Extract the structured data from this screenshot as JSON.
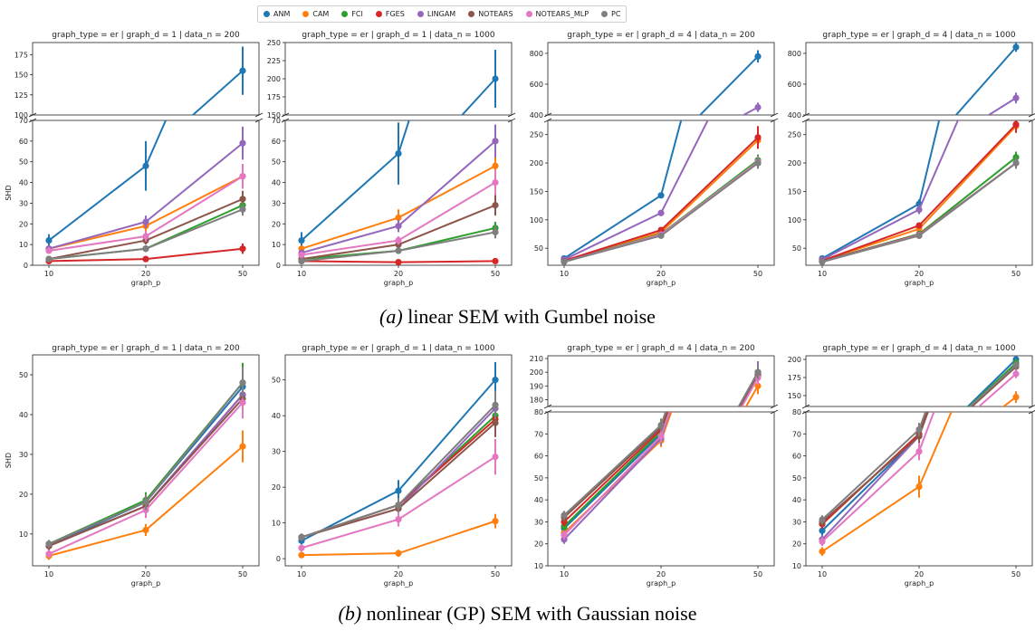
{
  "captions": {
    "a_label": "(a)",
    "a_text": " linear SEM with Gumbel noise",
    "b_label": "(b)",
    "b_text": " nonlinear (GP) SEM with Gaussian noise"
  },
  "legend": [
    {
      "name": "ANM",
      "color": "#1f77b4"
    },
    {
      "name": "CAM",
      "color": "#ff7f0e"
    },
    {
      "name": "FCI",
      "color": "#2ca02c"
    },
    {
      "name": "FGES",
      "color": "#d62728"
    },
    {
      "name": "LINGAM",
      "color": "#9467bd"
    },
    {
      "name": "NOTEARS",
      "color": "#8c564b"
    },
    {
      "name": "NOTEARS_MLP",
      "color": "#e377c2"
    },
    {
      "name": "PC",
      "color": "#7f7f7f"
    }
  ],
  "chart_data": [
    {
      "type": "line",
      "row": "a",
      "title": "graph_type = er | graph_d = 1 | data_n = 200",
      "xlabel": "graph_p",
      "ylabel": "SHD",
      "categories": [
        "10",
        "20",
        "50"
      ],
      "axes": [
        {
          "ylim": [
            100,
            190
          ],
          "ticks": [
            100,
            125,
            150,
            175
          ]
        },
        {
          "ylim": [
            0,
            70
          ],
          "ticks": [
            0,
            10,
            20,
            30,
            40,
            50,
            60,
            70
          ]
        }
      ],
      "series": [
        {
          "name": "ANM",
          "values": [
            12,
            48,
            155
          ],
          "err": [
            3,
            12,
            30
          ]
        },
        {
          "name": "CAM",
          "values": [
            8,
            19,
            43
          ],
          "err": [
            1.5,
            3,
            6
          ]
        },
        {
          "name": "FCI",
          "values": [
            3,
            8,
            29
          ],
          "err": [
            1,
            1.5,
            3
          ]
        },
        {
          "name": "FGES",
          "values": [
            2,
            3,
            8
          ],
          "err": [
            0.5,
            1,
            2.5
          ]
        },
        {
          "name": "LINGAM",
          "values": [
            8,
            21,
            59
          ],
          "err": [
            1.5,
            3,
            8
          ]
        },
        {
          "name": "NOTEARS",
          "values": [
            3,
            12,
            32
          ],
          "err": [
            1,
            2,
            4
          ]
        },
        {
          "name": "NOTEARS_MLP",
          "values": [
            7,
            14,
            43
          ],
          "err": [
            1.5,
            2.5,
            6
          ]
        },
        {
          "name": "PC",
          "values": [
            3,
            8,
            27
          ],
          "err": [
            1,
            1.5,
            3
          ]
        }
      ]
    },
    {
      "type": "line",
      "row": "a",
      "title": "graph_type = er | graph_d = 1 | data_n = 1000",
      "xlabel": "graph_p",
      "ylabel": "",
      "categories": [
        "10",
        "20",
        "50"
      ],
      "axes": [
        {
          "ylim": [
            150,
            250
          ],
          "ticks": [
            150,
            175,
            200,
            225,
            250
          ]
        },
        {
          "ylim": [
            0,
            70
          ],
          "ticks": [
            0,
            10,
            20,
            30,
            40,
            50,
            60,
            70
          ]
        }
      ],
      "series": [
        {
          "name": "ANM",
          "values": [
            12,
            54,
            200
          ],
          "err": [
            4,
            15,
            40
          ]
        },
        {
          "name": "CAM",
          "values": [
            8,
            23,
            48
          ],
          "err": [
            1.5,
            4,
            6
          ]
        },
        {
          "name": "FCI",
          "values": [
            3,
            7,
            18
          ],
          "err": [
            1,
            1.5,
            3
          ]
        },
        {
          "name": "FGES",
          "values": [
            2,
            1.5,
            2
          ],
          "err": [
            0.5,
            0.5,
            0.5
          ]
        },
        {
          "name": "LINGAM",
          "values": [
            6,
            19,
            60
          ],
          "err": [
            1.5,
            3,
            8
          ]
        },
        {
          "name": "NOTEARS",
          "values": [
            3,
            10,
            29
          ],
          "err": [
            1,
            2,
            5
          ]
        },
        {
          "name": "NOTEARS_MLP",
          "values": [
            5,
            12,
            40
          ],
          "err": [
            1.5,
            2,
            6
          ]
        },
        {
          "name": "PC",
          "values": [
            2,
            7,
            16
          ],
          "err": [
            1,
            1.5,
            3
          ]
        }
      ]
    },
    {
      "type": "line",
      "row": "a",
      "title": "graph_type = er | graph_d = 4 | data_n = 200",
      "xlabel": "graph_p",
      "ylabel": "",
      "categories": [
        "10",
        "20",
        "50"
      ],
      "axes": [
        {
          "ylim": [
            400,
            870
          ],
          "ticks": [
            400,
            600,
            800
          ]
        },
        {
          "ylim": [
            20,
            275
          ],
          "ticks": [
            50,
            100,
            150,
            200,
            250
          ]
        }
      ],
      "series": [
        {
          "name": "ANM",
          "values": [
            32,
            143,
            780
          ],
          "err": [
            2,
            3,
            40
          ]
        },
        {
          "name": "CAM",
          "values": [
            28,
            78,
            240
          ],
          "err": [
            2,
            3,
            10
          ]
        },
        {
          "name": "FCI",
          "values": [
            27,
            75,
            205
          ],
          "err": [
            2,
            3,
            10
          ]
        },
        {
          "name": "FGES",
          "values": [
            28,
            82,
            245
          ],
          "err": [
            2,
            3,
            20
          ]
        },
        {
          "name": "LINGAM",
          "values": [
            30,
            112,
            450
          ],
          "err": [
            2,
            3,
            30
          ]
        },
        {
          "name": "NOTEARS",
          "values": [
            27,
            73,
            200
          ],
          "err": [
            2,
            3,
            10
          ]
        },
        {
          "name": "NOTEARS_MLP",
          "values": [
            26,
            74,
            202
          ],
          "err": [
            2,
            3,
            10
          ]
        },
        {
          "name": "PC",
          "values": [
            26,
            72,
            200
          ],
          "err": [
            2,
            3,
            10
          ]
        }
      ]
    },
    {
      "type": "line",
      "row": "a",
      "title": "graph_type = er | graph_d = 4 | data_n = 1000",
      "xlabel": "graph_p",
      "ylabel": "",
      "categories": [
        "10",
        "20",
        "50"
      ],
      "axes": [
        {
          "ylim": [
            400,
            870
          ],
          "ticks": [
            400,
            600,
            800
          ]
        },
        {
          "ylim": [
            20,
            275
          ],
          "ticks": [
            50,
            100,
            150,
            200,
            250
          ]
        }
      ],
      "series": [
        {
          "name": "ANM",
          "values": [
            32,
            128,
            840
          ],
          "err": [
            2,
            8,
            30
          ]
        },
        {
          "name": "CAM",
          "values": [
            28,
            84,
            265
          ],
          "err": [
            2,
            3,
            10
          ]
        },
        {
          "name": "FCI",
          "values": [
            27,
            75,
            210
          ],
          "err": [
            2,
            3,
            10
          ]
        },
        {
          "name": "FGES",
          "values": [
            28,
            90,
            268
          ],
          "err": [
            2,
            3,
            15
          ]
        },
        {
          "name": "LINGAM",
          "values": [
            30,
            118,
            510
          ],
          "err": [
            2,
            8,
            35
          ]
        },
        {
          "name": "NOTEARS",
          "values": [
            27,
            74,
            200
          ],
          "err": [
            2,
            3,
            10
          ]
        },
        {
          "name": "NOTEARS_MLP",
          "values": [
            26,
            73,
            200
          ],
          "err": [
            2,
            3,
            10
          ]
        },
        {
          "name": "PC",
          "values": [
            26,
            72,
            200
          ],
          "err": [
            2,
            3,
            10
          ]
        }
      ]
    },
    {
      "type": "line",
      "row": "b",
      "title": "graph_type = er | graph_d = 1 | data_n = 200",
      "xlabel": "graph_p",
      "ylabel": "SHD",
      "categories": [
        "10",
        "20",
        "50"
      ],
      "axes": [
        {
          "ylim": [
            2,
            55
          ],
          "ticks": [
            10,
            20,
            30,
            40,
            50
          ]
        }
      ],
      "series": [
        {
          "name": "ANM",
          "values": [
            7,
            18,
            47
          ],
          "err": [
            1,
            2,
            4
          ]
        },
        {
          "name": "CAM",
          "values": [
            4.5,
            11,
            32
          ],
          "err": [
            1,
            1.5,
            4
          ]
        },
        {
          "name": "FCI",
          "values": [
            7.5,
            18.5,
            48
          ],
          "err": [
            1,
            2,
            5
          ]
        },
        {
          "name": "FGES",
          "values": [
            7,
            17,
            45
          ],
          "err": [
            1,
            2,
            4
          ]
        },
        {
          "name": "LINGAM",
          "values": [
            7,
            17,
            45
          ],
          "err": [
            1,
            2,
            4
          ]
        },
        {
          "name": "NOTEARS",
          "values": [
            7,
            17,
            44
          ],
          "err": [
            1,
            2,
            4
          ]
        },
        {
          "name": "NOTEARS_MLP",
          "values": [
            5,
            16,
            43
          ],
          "err": [
            1,
            2,
            4
          ]
        },
        {
          "name": "PC",
          "values": [
            7.5,
            18,
            48
          ],
          "err": [
            1,
            2,
            4
          ]
        }
      ]
    },
    {
      "type": "line",
      "row": "b",
      "title": "graph_type = er | graph_d = 1 | data_n = 1000",
      "xlabel": "graph_p",
      "ylabel": "",
      "categories": [
        "10",
        "20",
        "50"
      ],
      "axes": [
        {
          "ylim": [
            -2,
            57
          ],
          "ticks": [
            0,
            10,
            20,
            30,
            40,
            50
          ]
        }
      ],
      "series": [
        {
          "name": "ANM",
          "values": [
            5,
            19,
            50
          ],
          "err": [
            1,
            3,
            5
          ]
        },
        {
          "name": "CAM",
          "values": [
            1,
            1.5,
            10.5
          ],
          "err": [
            0.5,
            1,
            2
          ]
        },
        {
          "name": "FCI",
          "values": [
            6,
            15,
            40
          ],
          "err": [
            1,
            2,
            4
          ]
        },
        {
          "name": "FGES",
          "values": [
            6,
            15,
            39
          ],
          "err": [
            1,
            2,
            4
          ]
        },
        {
          "name": "LINGAM",
          "values": [
            6,
            14,
            42
          ],
          "err": [
            1,
            2,
            4
          ]
        },
        {
          "name": "NOTEARS",
          "values": [
            6,
            14,
            38
          ],
          "err": [
            1,
            2,
            4
          ]
        },
        {
          "name": "NOTEARS_MLP",
          "values": [
            3,
            11,
            28.5
          ],
          "err": [
            1,
            2,
            5
          ]
        },
        {
          "name": "PC",
          "values": [
            6,
            15,
            43
          ],
          "err": [
            1,
            2,
            4
          ]
        }
      ]
    },
    {
      "type": "line",
      "row": "b",
      "title": "graph_type = er | graph_d = 4 | data_n = 200",
      "xlabel": "graph_p",
      "ylabel": "",
      "categories": [
        "10",
        "20",
        "50"
      ],
      "axes": [
        {
          "ylim": [
            175,
            212
          ],
          "ticks": [
            180,
            190,
            200,
            210
          ]
        },
        {
          "ylim": [
            10,
            80
          ],
          "ticks": [
            10,
            20,
            30,
            40,
            50,
            60,
            70,
            80
          ]
        }
      ],
      "series": [
        {
          "name": "ANM",
          "values": [
            27,
            70,
            200
          ],
          "err": [
            2,
            3,
            5
          ]
        },
        {
          "name": "CAM",
          "values": [
            25,
            67,
            190
          ],
          "err": [
            2,
            3,
            6
          ]
        },
        {
          "name": "FCI",
          "values": [
            28,
            71,
            198
          ],
          "err": [
            2,
            3,
            5
          ]
        },
        {
          "name": "FGES",
          "values": [
            30,
            72,
            198
          ],
          "err": [
            2,
            3,
            5
          ]
        },
        {
          "name": "LINGAM",
          "values": [
            22,
            68,
            200
          ],
          "err": [
            2,
            3,
            8
          ]
        },
        {
          "name": "NOTEARS",
          "values": [
            32,
            73,
            198
          ],
          "err": [
            2,
            3,
            5
          ]
        },
        {
          "name": "NOTEARS_MLP",
          "values": [
            24,
            69,
            196
          ],
          "err": [
            2,
            3,
            5
          ]
        },
        {
          "name": "PC",
          "values": [
            33,
            74,
            200
          ],
          "err": [
            2,
            3,
            5
          ]
        }
      ]
    },
    {
      "type": "line",
      "row": "b",
      "title": "graph_type = er | graph_d = 4 | data_n = 1000",
      "xlabel": "graph_p",
      "ylabel": "",
      "categories": [
        "10",
        "20",
        "50"
      ],
      "axes": [
        {
          "ylim": [
            135,
            205
          ],
          "ticks": [
            150,
            175,
            200
          ]
        },
        {
          "ylim": [
            10,
            80
          ],
          "ticks": [
            10,
            20,
            30,
            40,
            50,
            60,
            70,
            80
          ]
        }
      ],
      "series": [
        {
          "name": "ANM",
          "values": [
            26,
            69,
            200
          ],
          "err": [
            2,
            3,
            8
          ]
        },
        {
          "name": "CAM",
          "values": [
            16.5,
            46,
            148
          ],
          "err": [
            2,
            5,
            8
          ]
        },
        {
          "name": "FCI",
          "values": [
            29,
            70,
            195
          ],
          "err": [
            2,
            3,
            6
          ]
        },
        {
          "name": "FGES",
          "values": [
            29,
            70,
            192
          ],
          "err": [
            2,
            3,
            6
          ]
        },
        {
          "name": "LINGAM",
          "values": [
            22,
            69,
            190
          ],
          "err": [
            2,
            3,
            6
          ]
        },
        {
          "name": "NOTEARS",
          "values": [
            30,
            69,
            190
          ],
          "err": [
            2,
            3,
            6
          ]
        },
        {
          "name": "NOTEARS_MLP",
          "values": [
            21,
            62,
            180
          ],
          "err": [
            2,
            4,
            6
          ]
        },
        {
          "name": "PC",
          "values": [
            31,
            72,
            192
          ],
          "err": [
            2,
            3,
            6
          ]
        }
      ]
    }
  ]
}
